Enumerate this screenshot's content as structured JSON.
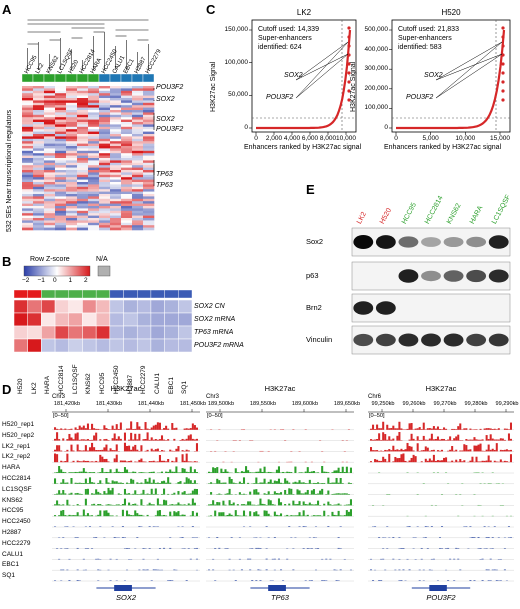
{
  "panels": {
    "a": {
      "letter": "A",
      "ylabel": "532 SEs Near transcriptional regulators",
      "cell_lines": [
        "HCC95",
        "LK2",
        "KNS62",
        "LC1SQSF",
        "H520",
        "HCC2814",
        "HARA",
        "HCC2450",
        "CALU1",
        "EBC1",
        "H2887",
        "HCC2279"
      ],
      "group_colors": [
        "#2ca02c",
        "#2ca02c",
        "#2ca02c",
        "#2ca02c",
        "#2ca02c",
        "#2ca02c",
        "#2ca02c",
        "#1f77b4",
        "#1f77b4",
        "#1f77b4",
        "#1f77b4",
        "#1f77b4"
      ],
      "gene_labels": [
        "POU3F2",
        "SOX2",
        "SOX2",
        "POU3F2",
        "TP63",
        "TP63"
      ]
    },
    "b": {
      "letter": "B",
      "legend_title": "Row Z-score",
      "legend_ticks": [
        "−2",
        "−1",
        "0",
        "1",
        "2"
      ],
      "na_label": "N/A",
      "rows": [
        "SOX2 CN",
        "SOX2 mRNA",
        "TP63 mRNA",
        "POU3F2 mRNA"
      ],
      "columns": [
        "H520",
        "LK2",
        "HARA",
        "HCC2814",
        "LC1SQSF",
        "KNS62",
        "HCC95",
        "HCC2450",
        "H2887",
        "HCC2279",
        "CALU1",
        "EBC1",
        "SQ1"
      ],
      "column_group_colors": [
        "#e41a1c",
        "#e41a1c",
        "#4daf4a",
        "#4daf4a",
        "#4daf4a",
        "#4daf4a",
        "#4daf4a",
        "#3b5bb5",
        "#3b5bb5",
        "#3b5bb5",
        "#3b5bb5",
        "#3b5bb5",
        "#3b5bb5"
      ],
      "values": [
        [
          1.8,
          1.2,
          1.6,
          0.4,
          0.2,
          1.0,
          0.6,
          -0.6,
          -0.8,
          -0.7,
          -0.9,
          -0.8,
          -0.6
        ],
        [
          2.0,
          1.8,
          0.2,
          0.6,
          0.8,
          0.2,
          0.6,
          -0.7,
          -0.6,
          -0.8,
          -0.9,
          -0.9,
          -0.9
        ],
        [
          0.4,
          0.3,
          0.8,
          1.6,
          1.2,
          1.4,
          1.8,
          -0.7,
          -0.8,
          -0.7,
          -0.9,
          -0.8,
          -0.6
        ],
        [
          1.2,
          2.2,
          -0.6,
          -0.7,
          -0.5,
          -0.6,
          -0.7,
          -0.6,
          -0.7,
          -0.6,
          -0.8,
          -0.7,
          -0.7
        ]
      ]
    },
    "c": {
      "letter": "C",
      "ylabel": "H3K27ac Signal",
      "xlabel": "Enhancers ranked by H3K27ac signal",
      "plots": [
        {
          "title": "LK2",
          "cutoff_text": "Cutoff used: 14,339",
          "se_text_1": "Super-enhancers",
          "se_text_2": "identified: 624",
          "yticks": [
            "0",
            "50,000",
            "100,000",
            "150,000"
          ],
          "xticks": [
            "0",
            "2,000",
            "4,000",
            "6,000",
            "8,000",
            "10,000"
          ],
          "genes": [
            "SOX2",
            "POU3F2"
          ]
        },
        {
          "title": "H520",
          "cutoff_text": "Cutoff used: 21,833",
          "se_text_1": "Super-enhancers",
          "se_text_2": "identified: 583",
          "yticks": [
            "0",
            "100,000",
            "200,000",
            "300,000",
            "400,000",
            "500,000"
          ],
          "xticks": [
            "0",
            "5,000",
            "10,000",
            "15,000"
          ],
          "genes": [
            "SOX2",
            "POU3F2"
          ]
        }
      ]
    },
    "d": {
      "letter": "D",
      "scale": "[0–50]",
      "tracks": [
        "H520_rep1",
        "H520_rep2",
        "LK2_rep1",
        "LK2_rep2",
        "HARA",
        "HCC2814",
        "LC1SQSF",
        "KNS62",
        "HCC95",
        "HCC2450",
        "H2887",
        "HCC2279",
        "CALU1",
        "EBC1",
        "SQ1"
      ],
      "track_colors": [
        "#d62728",
        "#d62728",
        "#d62728",
        "#d62728",
        "#2ca02c",
        "#2ca02c",
        "#2ca02c",
        "#2ca02c",
        "#2ca02c",
        "#1f3f9f",
        "#1f3f9f",
        "#1f3f9f",
        "#1f3f9f",
        "#1f3f9f",
        "#1f3f9f"
      ],
      "loci": [
        {
          "title": "H3K27ac",
          "chr": "Chr3",
          "coords": [
            "181,420kb",
            "181,430kb",
            "181,440kb",
            "181,450kb"
          ],
          "gene": "SOX2"
        },
        {
          "title": "H3K27ac",
          "chr": "Chr3",
          "coords": [
            "189,500kb",
            "189,550kb",
            "189,600kb",
            "189,650kb"
          ],
          "gene": "TP63"
        },
        {
          "title": "H3K27ac",
          "chr": "Chr6",
          "coords": [
            "99,250kb",
            "99,260kb",
            "99,270kb",
            "99,280kb",
            "99,290kb"
          ],
          "gene": "POU3F2"
        }
      ]
    },
    "e": {
      "letter": "E",
      "lanes": [
        "LK2",
        "H520",
        "HCC95",
        "HCC2814",
        "KNS62",
        "HARA",
        "LC1SQSF"
      ],
      "lane_colors": [
        "#d62728",
        "#d62728",
        "#2ca02c",
        "#2ca02c",
        "#2ca02c",
        "#2ca02c",
        "#2ca02c"
      ],
      "blots": [
        {
          "name": "Sox2",
          "intensity": [
            1.0,
            0.95,
            0.55,
            0.3,
            0.35,
            0.4,
            0.9
          ]
        },
        {
          "name": "p63",
          "intensity": [
            0.0,
            0.0,
            0.9,
            0.4,
            0.6,
            0.7,
            0.85
          ]
        },
        {
          "name": "Brn2",
          "intensity": [
            0.9,
            0.9,
            0.0,
            0.0,
            0.0,
            0.0,
            0.0
          ]
        },
        {
          "name": "Vinculin",
          "intensity": [
            0.7,
            0.75,
            0.85,
            0.85,
            0.85,
            0.75,
            0.8
          ]
        }
      ]
    }
  }
}
